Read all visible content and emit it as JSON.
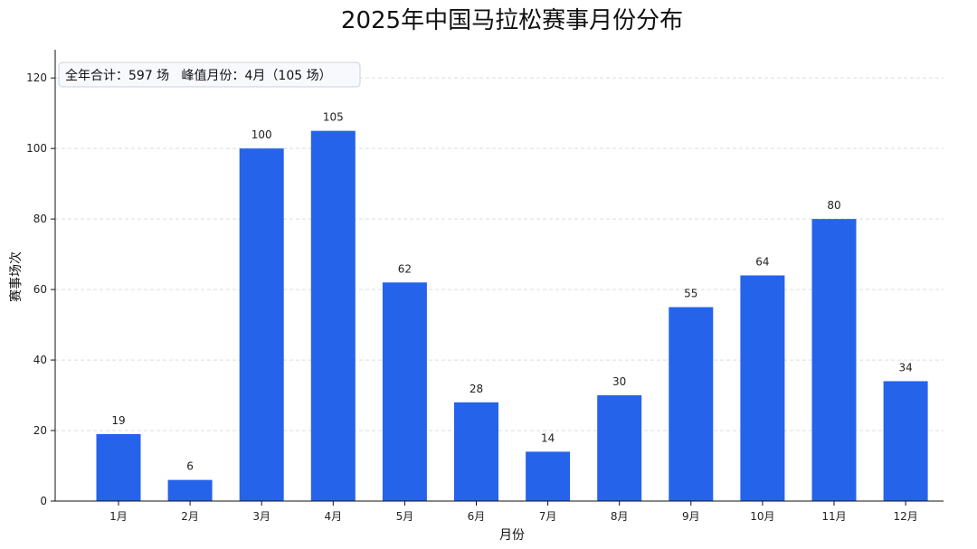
{
  "chart_data": {
    "type": "bar",
    "title": "2025年中国马拉松赛事月份分布",
    "xlabel": "月份",
    "ylabel": "赛事场次",
    "categories": [
      "1月",
      "2月",
      "3月",
      "4月",
      "5月",
      "6月",
      "7月",
      "8月",
      "9月",
      "10月",
      "11月",
      "12月"
    ],
    "values": [
      19,
      6,
      100,
      105,
      62,
      28,
      14,
      30,
      55,
      64,
      80,
      34
    ],
    "ylim": [
      0,
      128
    ],
    "yticks": [
      0,
      20,
      40,
      60,
      80,
      100,
      120
    ],
    "grid": "y-dashed",
    "bar_color": "#2563eb",
    "annotation": "全年合计：597 场   峰值月份：4月（105 场）"
  }
}
